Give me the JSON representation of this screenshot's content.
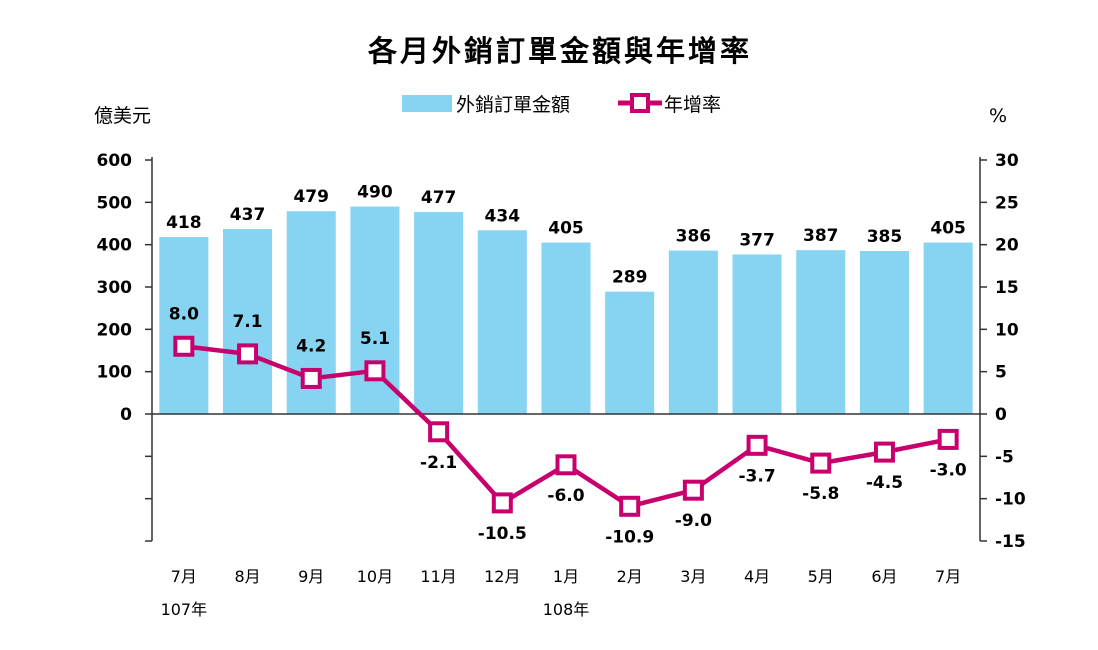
{
  "chart_data": {
    "type": "bar",
    "title": "各月外銷訂單金額與年增率",
    "categories": [
      "7月",
      "8月",
      "9月",
      "10月",
      "11月",
      "12月",
      "1月",
      "2月",
      "3月",
      "4月",
      "5月",
      "6月",
      "7月"
    ],
    "year_labels": [
      {
        "label": "107年",
        "index": 0
      },
      {
        "label": "108年",
        "index": 6
      }
    ],
    "series": [
      {
        "name": "外銷訂單金額",
        "type": "bar",
        "axis": "left",
        "color": "#87d3f2",
        "values": [
          418,
          437,
          479,
          490,
          477,
          434,
          405,
          289,
          386,
          377,
          387,
          385,
          405
        ],
        "labels": [
          "418",
          "437",
          "479",
          "490",
          "477",
          "434",
          "405",
          "289",
          "386",
          "377",
          "387",
          "385",
          "405"
        ]
      },
      {
        "name": "年增率",
        "type": "line",
        "axis": "right",
        "color": "#c8006e",
        "values": [
          8.0,
          7.1,
          4.2,
          5.1,
          -2.1,
          -10.5,
          -6.0,
          -10.9,
          -9.0,
          -3.7,
          -5.8,
          -4.5,
          -3.0
        ],
        "labels": [
          "8.0",
          "7.1",
          "4.2",
          "5.1",
          "-2.1",
          "-10.5",
          "-6.0",
          "-10.9",
          "-9.0",
          "-3.7",
          "-5.8",
          "-4.5",
          "-3.0"
        ]
      }
    ],
    "left_axis": {
      "label": "億美元",
      "ylim": [
        -300,
        600
      ],
      "ticks": [
        600,
        500,
        400,
        300,
        200,
        100,
        0,
        -100,
        -200,
        -300
      ],
      "tick_labels": [
        "600",
        "500",
        "400",
        "300",
        "200",
        "100",
        "0",
        "",
        "",
        ""
      ]
    },
    "right_axis": {
      "label": "%",
      "ylim": [
        -15,
        30
      ],
      "ticks": [
        30,
        25,
        20,
        15,
        10,
        5,
        0,
        -5,
        -10,
        -15
      ],
      "tick_labels": [
        "30",
        "25",
        "20",
        "15",
        "10",
        "5",
        "0",
        "-5",
        "-10",
        "-15"
      ]
    },
    "legend_position": "top-center",
    "grid": false
  }
}
